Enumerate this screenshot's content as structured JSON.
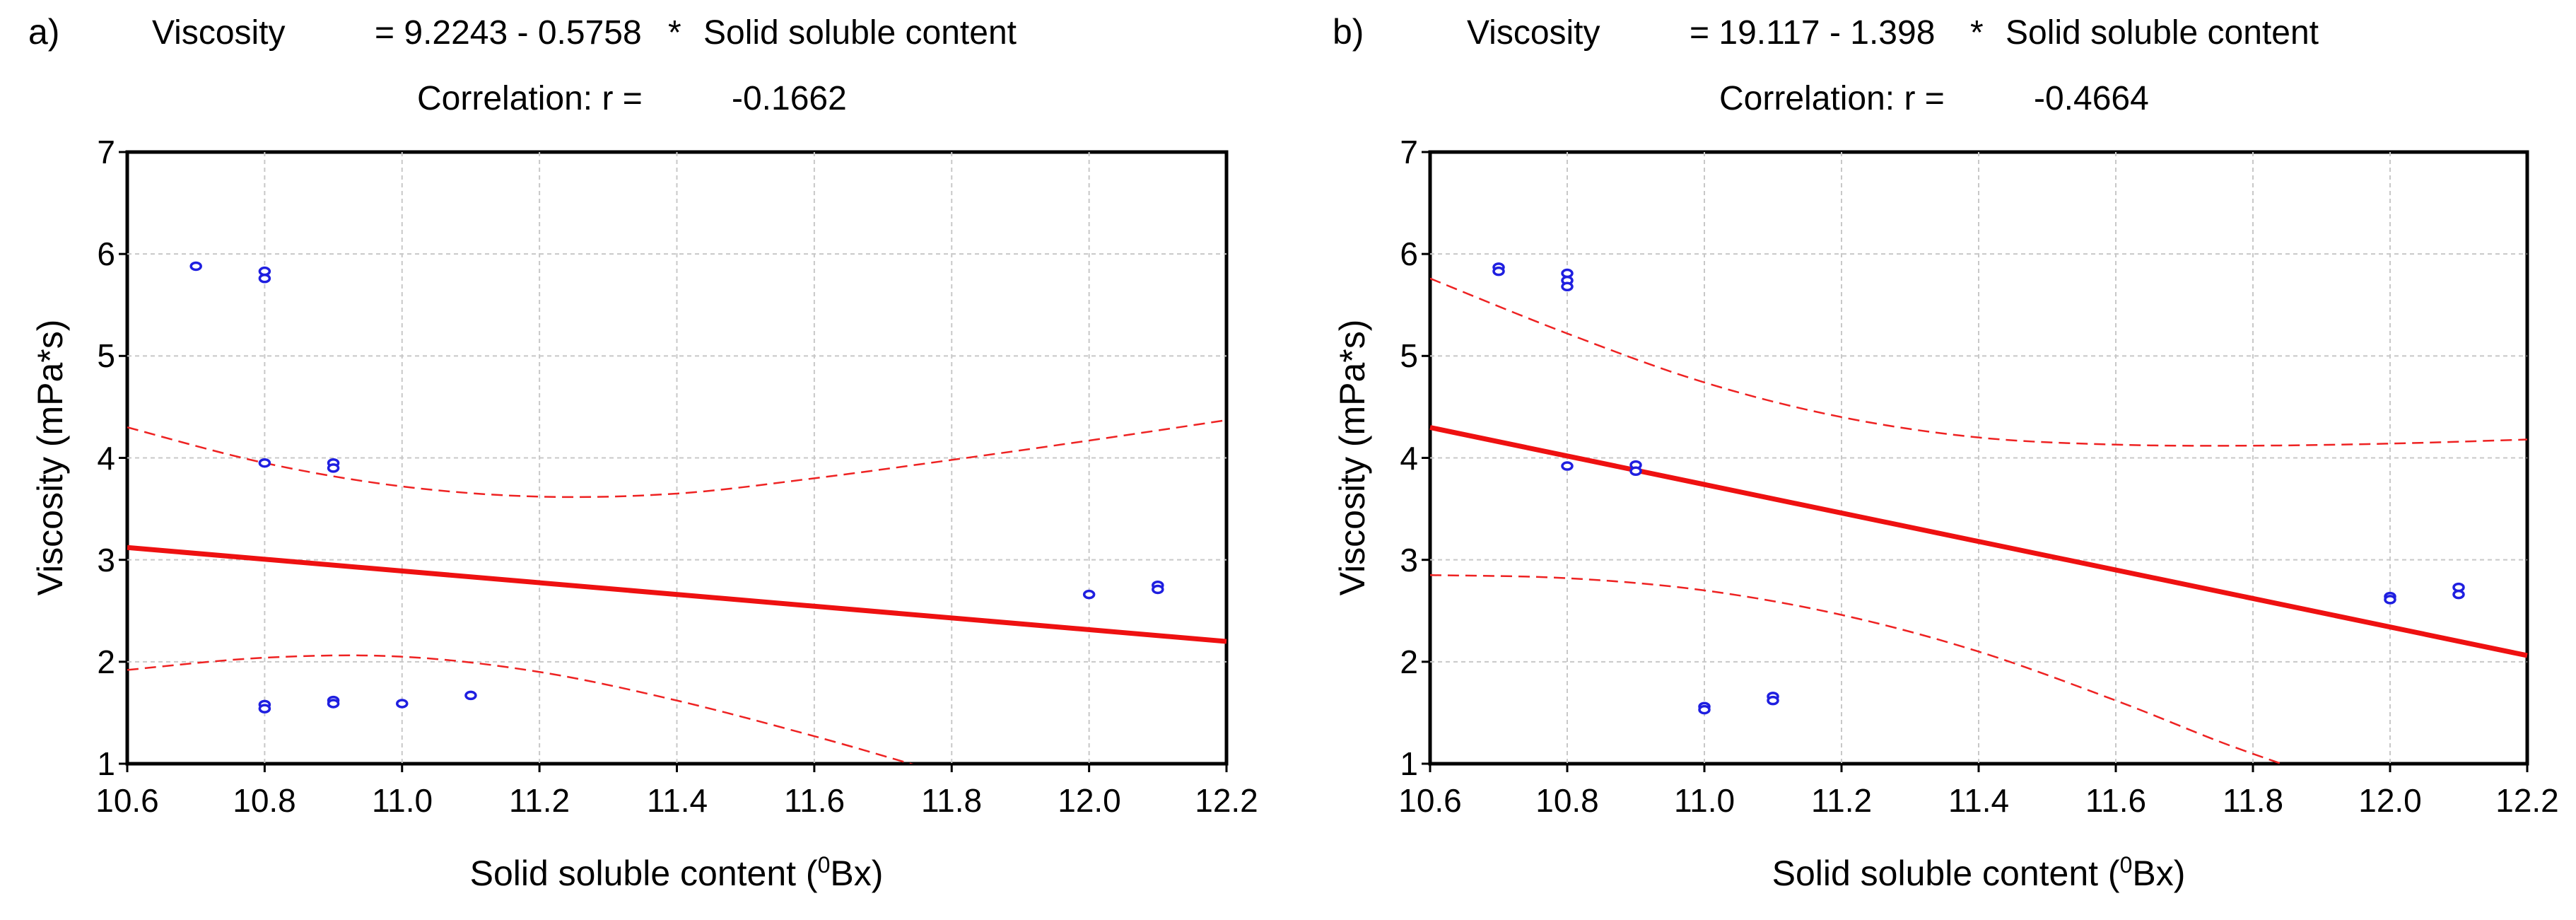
{
  "chart_data": [
    {
      "type": "scatter",
      "panel_label": "a)",
      "equation": {
        "lhs": "Viscosity",
        "rhs": "= 9.2243 - 0.5758",
        "mult": "*",
        "var": "Solid soluble content"
      },
      "correlation_label": "Correlation: r =",
      "correlation_value": "-0.1662",
      "xlabel_main": "Solid soluble content (",
      "xlabel_sup": "0",
      "xlabel_end": "Bx)",
      "ylabel": "Viscosity (mPa*s)",
      "xlim": [
        10.6,
        12.2
      ],
      "ylim": [
        1,
        7
      ],
      "xticks": [
        "10.6",
        "10.8",
        "11.0",
        "11.2",
        "11.4",
        "11.6",
        "11.8",
        "12.0",
        "12.2"
      ],
      "yticks": [
        "1",
        "2",
        "3",
        "4",
        "5",
        "6",
        "7"
      ],
      "fit": {
        "intercept": 9.2243,
        "slope": -0.5758
      },
      "band_upper": [
        [
          10.6,
          4.3
        ],
        [
          10.8,
          3.95
        ],
        [
          11.0,
          3.72
        ],
        [
          11.2,
          3.62
        ],
        [
          11.4,
          3.65
        ],
        [
          11.6,
          3.8
        ],
        [
          11.8,
          3.98
        ],
        [
          12.0,
          4.17
        ],
        [
          12.2,
          4.37
        ]
      ],
      "band_lower": [
        [
          10.6,
          1.92
        ],
        [
          10.8,
          2.04
        ],
        [
          11.0,
          2.05
        ],
        [
          11.2,
          1.9
        ],
        [
          11.4,
          1.62
        ],
        [
          11.6,
          1.27
        ],
        [
          11.75,
          0.98
        ]
      ],
      "points": [
        [
          10.7,
          5.88
        ],
        [
          10.8,
          5.83
        ],
        [
          10.8,
          5.76
        ],
        [
          10.8,
          3.95
        ],
        [
          10.9,
          3.95
        ],
        [
          10.9,
          3.9
        ],
        [
          10.8,
          1.58
        ],
        [
          10.8,
          1.54
        ],
        [
          10.9,
          1.62
        ],
        [
          10.9,
          1.59
        ],
        [
          11.0,
          1.59
        ],
        [
          11.1,
          1.67
        ],
        [
          12.0,
          2.66
        ],
        [
          12.1,
          2.75
        ],
        [
          12.1,
          2.71
        ]
      ]
    },
    {
      "type": "scatter",
      "panel_label": "b)",
      "equation": {
        "lhs": "Viscosity",
        "rhs": "= 19.117 - 1.398",
        "mult": "*",
        "var": "Solid soluble content"
      },
      "correlation_label": "Correlation: r =",
      "correlation_value": "-0.4664",
      "xlabel_main": "Solid soluble content (",
      "xlabel_sup": "0",
      "xlabel_end": "Bx)",
      "ylabel": "Viscosity (mPa*s)",
      "xlim": [
        10.6,
        12.2
      ],
      "ylim": [
        1,
        7
      ],
      "xticks": [
        "10.6",
        "10.8",
        "11.0",
        "11.2",
        "11.4",
        "11.6",
        "11.8",
        "12.0",
        "12.2"
      ],
      "yticks": [
        "1",
        "2",
        "3",
        "4",
        "5",
        "6",
        "7"
      ],
      "fit": {
        "intercept": 19.117,
        "slope": -1.398
      },
      "band_upper": [
        [
          10.6,
          5.76
        ],
        [
          10.8,
          5.22
        ],
        [
          11.0,
          4.74
        ],
        [
          11.2,
          4.4
        ],
        [
          11.4,
          4.2
        ],
        [
          11.6,
          4.13
        ],
        [
          11.8,
          4.12
        ],
        [
          12.0,
          4.14
        ],
        [
          12.2,
          4.18
        ]
      ],
      "band_lower": [
        [
          10.6,
          2.85
        ],
        [
          10.8,
          2.82
        ],
        [
          11.0,
          2.7
        ],
        [
          11.2,
          2.46
        ],
        [
          11.4,
          2.1
        ],
        [
          11.6,
          1.62
        ],
        [
          11.75,
          1.22
        ],
        [
          11.85,
          0.98
        ]
      ],
      "points": [
        [
          10.7,
          5.87
        ],
        [
          10.7,
          5.83
        ],
        [
          10.8,
          5.81
        ],
        [
          10.8,
          5.74
        ],
        [
          10.8,
          5.68
        ],
        [
          10.8,
          3.92
        ],
        [
          10.9,
          3.93
        ],
        [
          10.9,
          3.87
        ],
        [
          11.0,
          1.56
        ],
        [
          11.0,
          1.53
        ],
        [
          11.1,
          1.66
        ],
        [
          11.1,
          1.62
        ],
        [
          12.0,
          2.64
        ],
        [
          12.0,
          2.61
        ],
        [
          12.1,
          2.73
        ],
        [
          12.1,
          2.66
        ]
      ]
    }
  ]
}
